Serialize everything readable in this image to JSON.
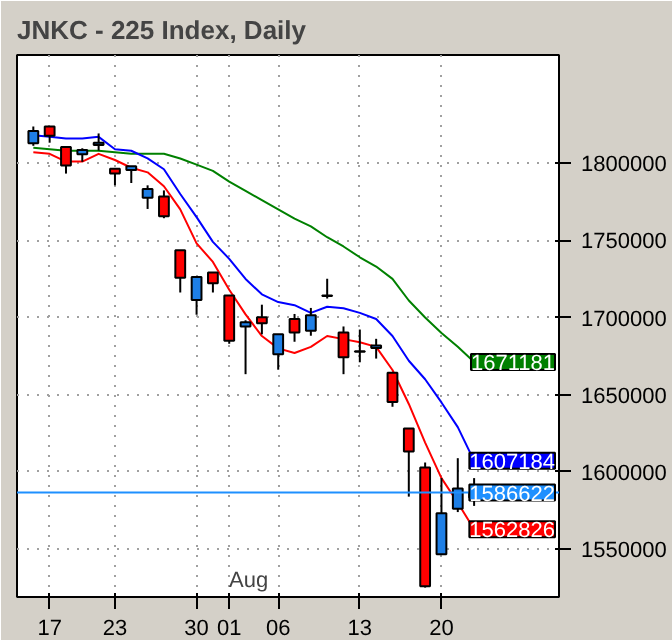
{
  "chart_data": {
    "type": "candlestick",
    "title": "JNKC - 225 Index, Daily",
    "categories": [
      null,
      "17",
      null,
      null,
      null,
      "23",
      null,
      null,
      null,
      null,
      "30",
      null,
      "01",
      null,
      null,
      "06",
      null,
      null,
      null,
      null,
      "13",
      null,
      null,
      null,
      null,
      "20",
      null,
      null
    ],
    "ohlc": [
      [
        1812900,
        1823700,
        1811200,
        1820800
      ],
      [
        1823700,
        1823700,
        1813200,
        1817700
      ],
      [
        1810500,
        1810500,
        1793200,
        1798400
      ],
      [
        1805700,
        1809600,
        1800800,
        1808400
      ],
      [
        1811700,
        1819200,
        1808100,
        1813200
      ],
      [
        1796400,
        1796400,
        1785600,
        1793200
      ],
      [
        1795600,
        1798000,
        1787100,
        1798000
      ],
      [
        1777500,
        1785600,
        1770300,
        1783200
      ],
      [
        1778400,
        1782300,
        1764300,
        1765500
      ],
      [
        1743500,
        1743500,
        1716200,
        1725800
      ],
      [
        1711400,
        1726300,
        1701800,
        1726300
      ],
      [
        1729100,
        1729100,
        1716200,
        1722200
      ],
      [
        1714300,
        1714300,
        1683000,
        1685000
      ],
      [
        1694200,
        1698200,
        1663300,
        1697000
      ],
      [
        1700200,
        1708300,
        1689100,
        1696300
      ],
      [
        1676200,
        1689100,
        1666200,
        1689100
      ],
      [
        1699000,
        1702300,
        1684300,
        1690300
      ],
      [
        1691500,
        1706200,
        1688200,
        1701400
      ],
      [
        1714000,
        1725100,
        1712300,
        1714300
      ],
      [
        1690300,
        1694200,
        1663300,
        1674200
      ],
      [
        1677800,
        1692200,
        1671000,
        1678200
      ],
      [
        1680200,
        1686200,
        1673400,
        1681800
      ],
      [
        1664200,
        1664200,
        1642200,
        1645300
      ],
      [
        1628100,
        1628100,
        1584000,
        1613300
      ],
      [
        1602900,
        1606100,
        1525100,
        1525900
      ],
      [
        1546700,
        1596000,
        1546700,
        1573200
      ],
      [
        1576100,
        1608900,
        1574000,
        1589300
      ],
      [
        1583400,
        1596000,
        1578000,
        1586622
      ]
    ],
    "colors": [
      "#1e7fe6",
      "#ff0000",
      "#ff0000",
      "#1e7fe6",
      "#1e7fe6",
      "#ff0000",
      "#1e7fe6",
      "#1e7fe6",
      "#ff0000",
      "#ff0000",
      "#1e7fe6",
      "#ff0000",
      "#ff0000",
      "#1e7fe6",
      "#ff0000",
      "#1e7fe6",
      "#ff0000",
      "#1e7fe6",
      "#1e7fe6",
      "#ff0000",
      "#1e7fe6",
      "#1e7fe6",
      "#ff0000",
      "#ff0000",
      "#ff0000",
      "#1e7fe6",
      "#1e7fe6",
      "#1e7fe6"
    ],
    "series": [
      {
        "type": "line",
        "color": "#008000",
        "values": [
          1810000,
          1809000,
          1808000,
          1808000,
          1808000,
          1807000,
          1806000,
          1806000,
          1806000,
          1803000,
          1799000,
          1795000,
          1788000,
          1782000,
          1776000,
          1770000,
          1764000,
          1759000,
          1752000,
          1746000,
          1739000,
          1733000,
          1725000,
          1711000,
          1700000,
          1690000,
          1681000,
          1671181
        ],
        "value_labels": [
          null,
          null,
          null,
          null,
          null,
          null,
          null,
          null,
          null,
          null,
          null,
          null,
          null,
          null,
          null,
          null,
          null,
          null,
          null,
          null,
          null,
          null,
          null,
          null,
          null,
          null,
          null,
          "1671181"
        ]
      },
      {
        "type": "line",
        "color": "#0000ff",
        "values": [
          1818000,
          1817000,
          1816000,
          1816000,
          1817000,
          1809000,
          1808000,
          1803000,
          1796000,
          1780000,
          1765000,
          1749000,
          1738000,
          1725000,
          1715000,
          1710000,
          1708000,
          1703000,
          1707000,
          1706000,
          1703000,
          1699000,
          1688000,
          1672000,
          1660000,
          1645000,
          1629000,
          1607184
        ],
        "value_labels": [
          null,
          null,
          null,
          null,
          null,
          null,
          null,
          null,
          null,
          null,
          null,
          null,
          null,
          null,
          null,
          null,
          null,
          null,
          null,
          null,
          null,
          null,
          null,
          null,
          null,
          null,
          null,
          "1607184"
        ]
      },
      {
        "type": "line",
        "color": "#ff0000",
        "values": [
          1807000,
          1806000,
          1801000,
          1801000,
          1806000,
          1802000,
          1797000,
          1794000,
          1785000,
          1770000,
          1748000,
          1736000,
          1718000,
          1702000,
          1688000,
          1680000,
          1677000,
          1681000,
          1688000,
          1686000,
          1684000,
          1681000,
          1666000,
          1644000,
          1619000,
          1596000,
          1580000,
          1562826
        ],
        "value_labels": [
          null,
          null,
          null,
          null,
          null,
          null,
          null,
          null,
          null,
          null,
          null,
          null,
          null,
          null,
          null,
          null,
          null,
          null,
          null,
          null,
          null,
          null,
          null,
          null,
          null,
          null,
          null,
          "1562826"
        ]
      }
    ],
    "ref_lines": [
      {
        "axis": "y",
        "value": 1586622,
        "label": "1586622",
        "color": "#1e90ff"
      }
    ],
    "annotations": [
      "Aug"
    ],
    "ylim": [
      1519000,
      1870000
    ],
    "yticks": [
      1550000,
      1600000,
      1650000,
      1700000,
      1750000,
      1800000
    ],
    "grid": true
  }
}
